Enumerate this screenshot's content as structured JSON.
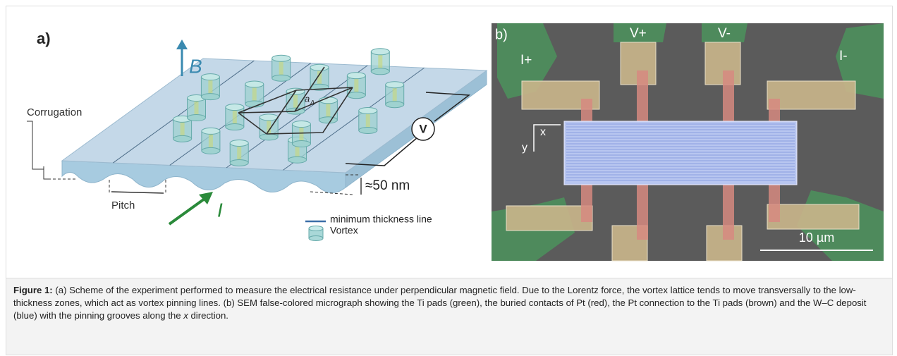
{
  "figure": {
    "panel_a": {
      "label": "a)",
      "field_label": "B",
      "corrugation_label": "Corrugation",
      "pitch_label": "Pitch",
      "current_label": "I",
      "voltage_label": "V",
      "thickness_label": "≈50 nm",
      "lattice_label": "a",
      "lattice_subscript": "Δ",
      "legend": [
        "minimum thickness line",
        "Vortex"
      ]
    },
    "panel_b": {
      "label": "b)",
      "contacts": [
        "V+",
        "V-",
        "I+",
        "I-"
      ],
      "axes": [
        "x",
        "y"
      ],
      "scale_bar": "10 µm"
    }
  },
  "caption": {
    "label": "Figure 1:",
    "text_before": "(a) Scheme of the experiment performed to measure the electrical resistance under perpendicular magnetic field. Due to the Lorentz force, the vortex lattice tends to move transversally to the low-thickness zones, which act as vortex pinning lines. (b) SEM false-colored micrograph showing the Ti pads (green), the buried contacts of Pt (red), the Pt connection to the Ti pads (brown) and the W–C deposit (blue) with the pinning grooves along the ",
    "italic": "x",
    "text_after": " direction."
  }
}
